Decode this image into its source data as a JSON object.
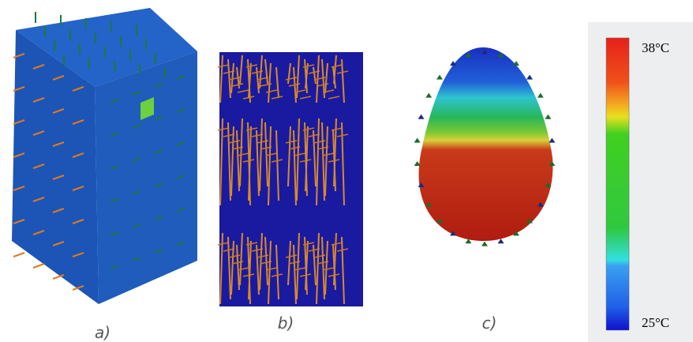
{
  "panels": [
    {
      "label": "a)"
    },
    {
      "label": "b)"
    },
    {
      "label": "c)"
    }
  ],
  "colorbar": {
    "max_label": "38°C",
    "min_label": "25°C"
  }
}
